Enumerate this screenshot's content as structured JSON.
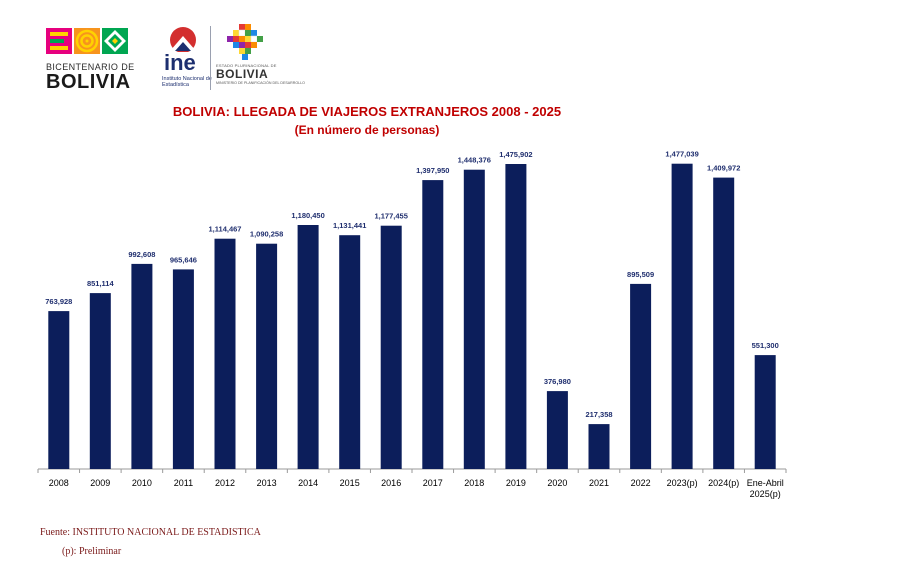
{
  "logos": {
    "bicentenario": {
      "line1": "BICENTENARIO DE",
      "line2": "BOLIVIA"
    },
    "ine": {
      "name": "ine",
      "subtitle": "Instituto Nacional de Estadística",
      "color": "#1d2f6f",
      "accent": "#d32f2f"
    },
    "estado": {
      "sup": "ESTADO PLURINACIONAL DE",
      "name": "BOLIVIA",
      "ministry": "MINISTERIO DE PLANIFICACIÓN DEL DESARROLLO"
    }
  },
  "chart_data": {
    "type": "bar",
    "title": "BOLIVIA: LLEGADA DE VIAJEROS EXTRANJEROS  2008 - 2025",
    "subtitle": "(En número de personas)",
    "categories": [
      "2008",
      "2009",
      "2010",
      "2011",
      "2012",
      "2013",
      "2014",
      "2015",
      "2016",
      "2017",
      "2018",
      "2019",
      "2020",
      "2021",
      "2022",
      "2023(p)",
      "2024(p)",
      "Ene-Abril 2025(p)"
    ],
    "values": [
      763928,
      851114,
      992608,
      965646,
      1114467,
      1090258,
      1180450,
      1131441,
      1177455,
      1397950,
      1448376,
      1475902,
      376980,
      217358,
      895509,
      1477039,
      1409972,
      551300
    ],
    "value_labels": [
      "763,928",
      "851,114",
      "992,608",
      "965,646",
      "1,114,467",
      "1,090,258",
      "1,180,450",
      "1,131,441",
      "1,177,455",
      "1,397,950",
      "1,448,376",
      "1,475,902",
      "376,980",
      "217,358",
      "895,509",
      "1,477,039",
      "1,409,972",
      "551,300"
    ],
    "ylim": [
      0,
      1500000
    ],
    "grid": false,
    "legend": "none",
    "bar_color": "#0c1e5b",
    "label_color": "#1f2e6e"
  },
  "footer": {
    "source": "Fuente: INSTITUTO NACIONAL DE ESTADISTICA",
    "note": "(p): Preliminar"
  }
}
